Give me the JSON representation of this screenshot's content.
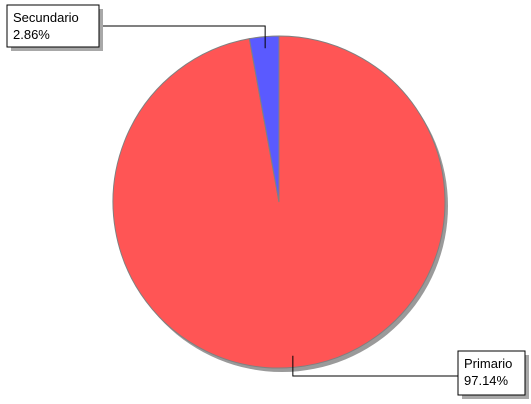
{
  "chart_data": {
    "type": "pie",
    "slices": [
      {
        "label": "Primario",
        "percent_label": "97.14%",
        "value": 97.14,
        "color": "#FF5555"
      },
      {
        "label": "Secundario",
        "percent_label": "2.86%",
        "value": 2.86,
        "color": "#5A5AFF"
      }
    ],
    "legend": "none",
    "data_labels": "callout-boxes"
  },
  "colors": {
    "background": "#FFFFFF",
    "outline": "#808080",
    "shadow": "#9A9A9A",
    "label_box_border": "#000000",
    "label_box_shadow": "#A8A8A8"
  }
}
